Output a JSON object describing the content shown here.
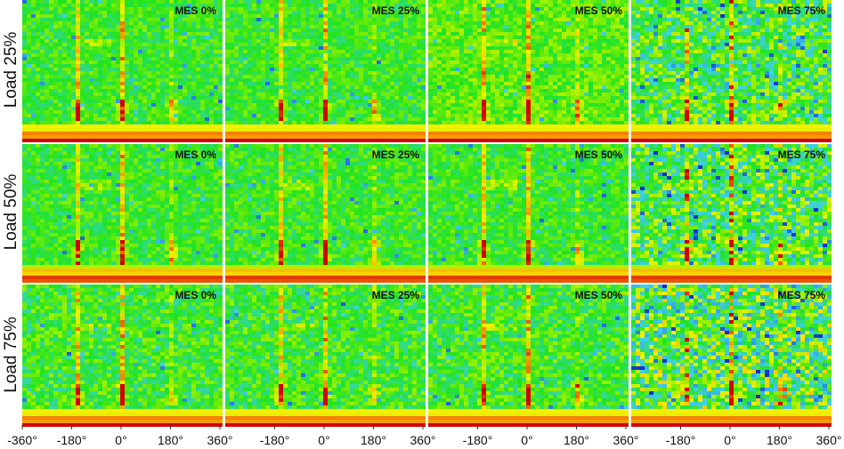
{
  "rows": [
    "Load 25%",
    "Load 50%",
    "Load 75%"
  ],
  "columns": [
    "MES 0%",
    "MES 25%",
    "MES 50%",
    "MES 75%"
  ],
  "x_axis": {
    "xlim": [
      -360,
      360
    ],
    "xticks": [
      {
        "value": -360,
        "label": "-360°"
      },
      {
        "value": -180,
        "label": "-180°"
      },
      {
        "value": 0,
        "label": "0°"
      },
      {
        "value": 180,
        "label": "180°"
      },
      {
        "value": 360,
        "label": "360°"
      }
    ]
  }
}
